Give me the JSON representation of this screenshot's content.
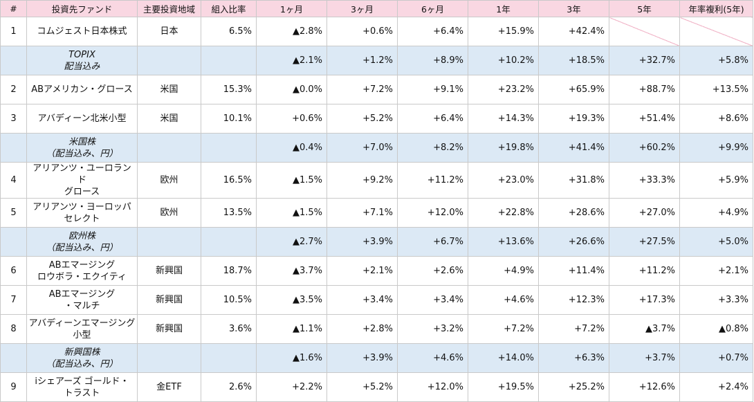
{
  "header": [
    "#",
    "投資先ファンド",
    "主要投資地域",
    "組入比率",
    "1ヶ月",
    "3ヶ月",
    "6ヶ月",
    "1年",
    "3年",
    "5年",
    "年率複利(5年)"
  ],
  "rows": [
    {
      "kind": "fund",
      "idx": "1",
      "name": [
        "コムジェスト日本株式"
      ],
      "region": "日本",
      "weight": "6.5%",
      "m1": "▲2.8%",
      "m3": "+0.6%",
      "m6": "+6.4%",
      "y1": "+15.9%",
      "y3": "+42.4%",
      "y5": "",
      "cagr": ""
    },
    {
      "kind": "bench",
      "idx": "",
      "name": [
        "TOPIX",
        "配当込み"
      ],
      "region": "",
      "weight": "",
      "m1": "▲2.1%",
      "m3": "+1.2%",
      "m6": "+8.9%",
      "y1": "+10.2%",
      "y3": "+18.5%",
      "y5": "+32.7%",
      "cagr": "+5.8%"
    },
    {
      "kind": "fund",
      "idx": "2",
      "name": [
        "ABアメリカン・グロース"
      ],
      "region": "米国",
      "weight": "15.3%",
      "m1": "▲0.0%",
      "m3": "+7.2%",
      "m6": "+9.1%",
      "y1": "+23.2%",
      "y3": "+65.9%",
      "y5": "+88.7%",
      "cagr": "+13.5%"
    },
    {
      "kind": "fund",
      "idx": "3",
      "name": [
        "アバディーン北米小型"
      ],
      "region": "米国",
      "weight": "10.1%",
      "m1": "+0.6%",
      "m3": "+5.2%",
      "m6": "+6.4%",
      "y1": "+14.3%",
      "y3": "+19.3%",
      "y5": "+51.4%",
      "cagr": "+8.6%"
    },
    {
      "kind": "bench",
      "idx": "",
      "name": [
        "米国株",
        "（配当込み、円）"
      ],
      "region": "",
      "weight": "",
      "m1": "▲0.4%",
      "m3": "+7.0%",
      "m6": "+8.2%",
      "y1": "+19.8%",
      "y3": "+41.4%",
      "y5": "+60.2%",
      "cagr": "+9.9%"
    },
    {
      "kind": "fund",
      "idx": "4",
      "name": [
        "アリアンツ・ユーロランド",
        "グロース"
      ],
      "region": "欧州",
      "weight": "16.5%",
      "m1": "▲1.5%",
      "m3": "+9.2%",
      "m6": "+11.2%",
      "y1": "+23.0%",
      "y3": "+31.8%",
      "y5": "+33.3%",
      "cagr": "+5.9%"
    },
    {
      "kind": "fund",
      "idx": "5",
      "name": [
        "アリアンツ・ヨーロッパ",
        "セレクト"
      ],
      "region": "欧州",
      "weight": "13.5%",
      "m1": "▲1.5%",
      "m3": "+7.1%",
      "m6": "+12.0%",
      "y1": "+22.8%",
      "y3": "+28.6%",
      "y5": "+27.0%",
      "cagr": "+4.9%"
    },
    {
      "kind": "bench",
      "idx": "",
      "name": [
        "欧州株",
        "（配当込み、円）"
      ],
      "region": "",
      "weight": "",
      "m1": "▲2.7%",
      "m3": "+3.9%",
      "m6": "+6.7%",
      "y1": "+13.6%",
      "y3": "+26.6%",
      "y5": "+27.5%",
      "cagr": "+5.0%"
    },
    {
      "kind": "fund",
      "idx": "6",
      "name": [
        "ABエマージング",
        "ロウボラ・エクイティ"
      ],
      "region": "新興国",
      "weight": "18.7%",
      "m1": "▲3.7%",
      "m3": "+2.1%",
      "m6": "+2.6%",
      "y1": "+4.9%",
      "y3": "+11.4%",
      "y5": "+11.2%",
      "cagr": "+2.1%"
    },
    {
      "kind": "fund",
      "idx": "7",
      "name": [
        "ABエマージング",
        "・マルチ"
      ],
      "region": "新興国",
      "weight": "10.5%",
      "m1": "▲3.5%",
      "m3": "+3.4%",
      "m6": "+3.4%",
      "y1": "+4.6%",
      "y3": "+12.3%",
      "y5": "+17.3%",
      "cagr": "+3.3%"
    },
    {
      "kind": "fund",
      "idx": "8",
      "name": [
        "アバディーンエマージング",
        "小型"
      ],
      "region": "新興国",
      "weight": "3.6%",
      "m1": "▲1.1%",
      "m3": "+2.8%",
      "m6": "+3.2%",
      "y1": "+7.2%",
      "y3": "+7.2%",
      "y5": "▲3.7%",
      "cagr": "▲0.8%"
    },
    {
      "kind": "bench",
      "idx": "",
      "name": [
        "新興国株",
        "（配当込み、円）"
      ],
      "region": "",
      "weight": "",
      "m1": "▲1.6%",
      "m3": "+3.9%",
      "m6": "+4.6%",
      "y1": "+14.0%",
      "y3": "+6.3%",
      "y5": "+3.7%",
      "cagr": "+0.7%"
    },
    {
      "kind": "fund",
      "idx": "9",
      "name": [
        "iシェアーズ ゴールド・",
        "トラスト"
      ],
      "region": "金ETF",
      "weight": "2.6%",
      "m1": "+2.2%",
      "m3": "+5.2%",
      "m6": "+12.0%",
      "y1": "+19.5%",
      "y3": "+25.2%",
      "y5": "+12.6%",
      "cagr": "+2.4%"
    }
  ]
}
